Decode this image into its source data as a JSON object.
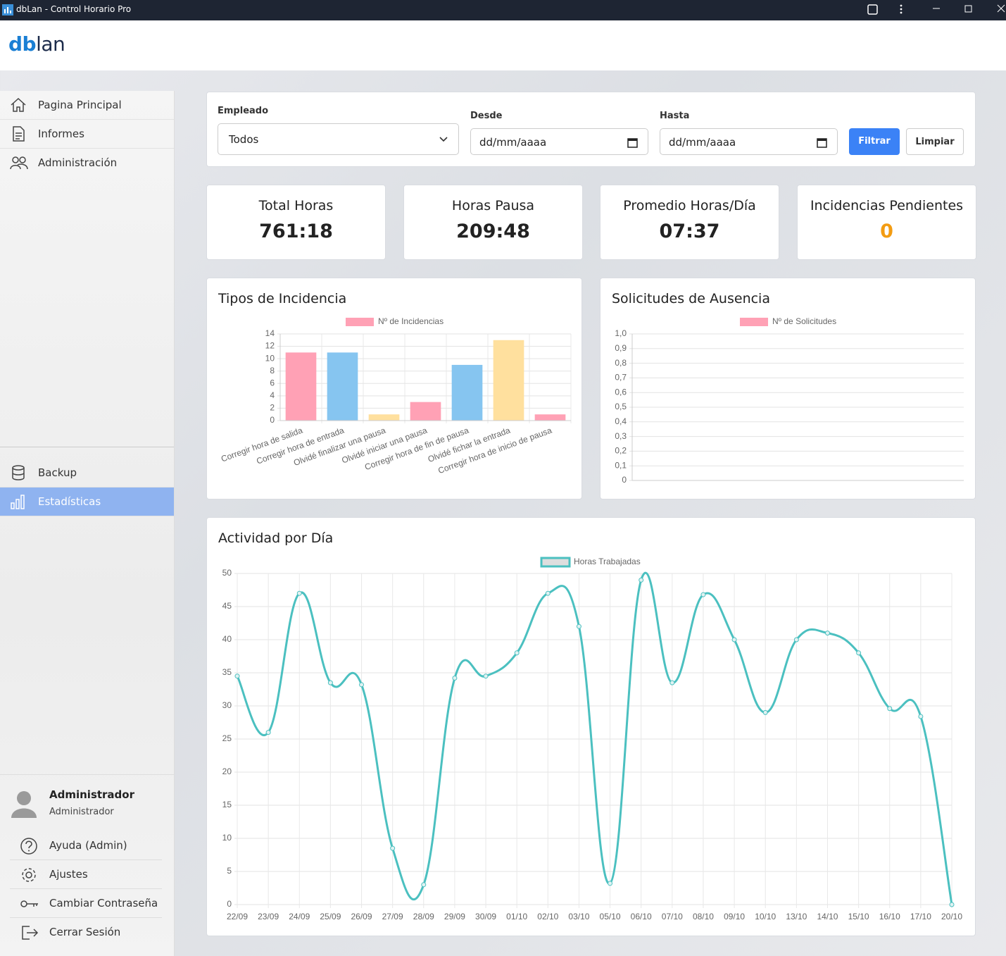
{
  "window": {
    "title": "dbLan - Control Horario Pro"
  },
  "logo": {
    "part1": "db",
    "part2": "lan"
  },
  "sidebar": {
    "menu": [
      "Pagina Principal",
      "Informes",
      "Administración"
    ],
    "menu2": [
      "Backup",
      "Estadísticas"
    ],
    "user": {
      "name": "Administrador",
      "role": "Administrador"
    },
    "links": [
      "Ayuda (Admin)",
      "Ajustes",
      "Cambiar Contraseña",
      "Cerrar Sesión"
    ]
  },
  "filters": {
    "employee_label": "Empleado",
    "employee_value": "Todos",
    "from_label": "Desde",
    "from_placeholder": "dd/mm/aaaa",
    "to_label": "Hasta",
    "to_placeholder": "dd/mm/aaaa",
    "filter_button": "Filtrar",
    "clear_button": "Limpiar"
  },
  "stats": [
    {
      "label": "Total Horas",
      "value": "761:18",
      "color": "#222222"
    },
    {
      "label": "Horas Pausa",
      "value": "209:48",
      "color": "#222222"
    },
    {
      "label": "Promedio Horas/Día",
      "value": "07:37",
      "color": "#222222"
    },
    {
      "label": "Incidencias Pendientes",
      "value": "0",
      "color": "#f39c12"
    }
  ],
  "chart_data": [
    {
      "type": "bar",
      "title": "Tipos de Incidencia",
      "categories": [
        "Corregir hora de salida",
        "Corregir hora de entrada",
        "Olvidé finalizar una pausa",
        "Olvidé iniciar una pausa",
        "Corregir hora de fin de pausa",
        "Olvidé fichar la entrada",
        "Corregir hora de inicio de pausa"
      ],
      "series": [
        {
          "name": "Nº de Incidencias",
          "color": "#ffa1b5",
          "colors": [
            "#ffa1b5",
            "#86c5f0",
            "#ffe09e",
            "#ffa1b5",
            "#86c5f0",
            "#ffe09e",
            "#ffa1b5"
          ],
          "values": [
            11,
            11,
            1,
            3,
            9,
            13,
            1
          ]
        }
      ],
      "ylim": [
        0,
        14
      ],
      "yticks": [
        0,
        2,
        4,
        6,
        8,
        10,
        12,
        14
      ],
      "grid": true
    },
    {
      "type": "bar",
      "title": "Solicitudes de Ausencia",
      "categories": [],
      "series": [
        {
          "name": "Nº de Solicitudes",
          "color": "#ffa1b5",
          "values": []
        }
      ],
      "ylim": [
        0,
        1
      ],
      "yticks": [
        0,
        {
          "value": 0.1,
          "label": "0,1"
        },
        {
          "value": 0.2,
          "label": "0,2"
        },
        {
          "value": 0.3,
          "label": "0,3"
        },
        {
          "value": 0.4,
          "label": "0,4"
        },
        {
          "value": 0.5,
          "label": "0,5"
        },
        {
          "value": 0.6,
          "label": "0,6"
        },
        {
          "value": 0.7,
          "label": "0,7"
        },
        {
          "value": 0.8,
          "label": "0,8"
        },
        {
          "value": 0.9,
          "label": "0,9"
        },
        {
          "value": 1,
          "label": "1,0"
        }
      ],
      "grid": true
    },
    {
      "type": "line",
      "title": "Actividad por Día",
      "categories": [
        "22/09",
        "23/09",
        "24/09",
        "25/09",
        "26/09",
        "27/09",
        "28/09",
        "29/09",
        "30/09",
        "01/10",
        "02/10",
        "03/10",
        "05/10",
        "06/10",
        "07/10",
        "08/10",
        "09/10",
        "10/10",
        "13/10",
        "14/10",
        "15/10",
        "16/10",
        "17/10",
        "20/10"
      ],
      "series": [
        {
          "name": "Horas Trabajadas",
          "color": "#4bc0c0",
          "values": [
            34.5,
            26,
            47,
            33.5,
            33.2,
            8.5,
            3,
            34.2,
            34.5,
            38,
            47,
            42,
            3.2,
            49,
            33.5,
            46.8,
            40,
            29,
            40,
            41,
            38,
            29.6,
            28.4,
            0
          ]
        }
      ],
      "ylim": [
        0,
        50
      ],
      "yticks": [
        0,
        5,
        10,
        15,
        20,
        25,
        30,
        35,
        40,
        45,
        50
      ],
      "grid": true
    }
  ]
}
